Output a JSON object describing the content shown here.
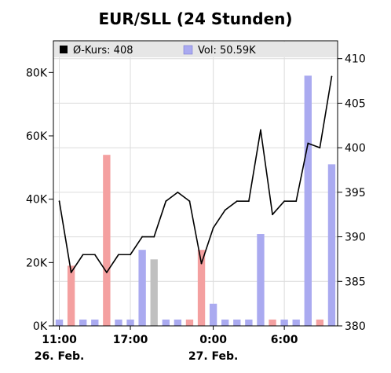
{
  "chart_data": {
    "type": "line",
    "title": "EUR/SLL (24 Stunden)",
    "legend": {
      "placement": "top",
      "items": [
        {
          "label": "Ø-Kurs: 408",
          "color": "#000000"
        },
        {
          "label": "Vol: 50.59K",
          "color": "#aaaaf0"
        }
      ]
    },
    "x_axis": {
      "ticks": [
        {
          "label": "11:00",
          "date": "26. Feb.",
          "at": 0
        },
        {
          "label": "17:00",
          "date": "",
          "at": 6
        },
        {
          "label": "0:00",
          "date": "27. Feb.",
          "at": 13
        },
        {
          "label": "6:00",
          "date": "",
          "at": 19
        }
      ]
    },
    "price_axis": {
      "position": "right",
      "range": [
        380,
        412
      ],
      "ticks": [
        "380",
        "385",
        "390",
        "395",
        "400",
        "405",
        "410"
      ]
    },
    "volume_axis": {
      "position": "left",
      "range": [
        0,
        90
      ],
      "ticks": [
        "0K",
        "20K",
        "40K",
        "60K",
        "80K"
      ]
    },
    "grid": true,
    "price_series": {
      "name": "Ø-Kurs",
      "color": "#000000",
      "values": [
        394,
        386,
        388,
        388,
        386,
        388,
        388,
        390,
        390,
        394,
        395,
        394,
        387,
        391,
        393,
        394,
        394,
        402,
        392.5,
        394,
        394,
        400.5,
        400,
        408
      ]
    },
    "volume_series": {
      "name": "Vol",
      "values": [
        2,
        19,
        2,
        2,
        54,
        2,
        2,
        24,
        21,
        2,
        2,
        2,
        24,
        7,
        2,
        2,
        2,
        29,
        2,
        2,
        2,
        79,
        2,
        51
      ],
      "colors": [
        "#aaaaf0",
        "#f4a0a0",
        "#aaaaf0",
        "#aaaaf0",
        "#f4a0a0",
        "#aaaaf0",
        "#aaaaf0",
        "#aaaaf0",
        "#c0c0c0",
        "#aaaaf0",
        "#aaaaf0",
        "#f4a0a0",
        "#f4a0a0",
        "#aaaaf0",
        "#aaaaf0",
        "#aaaaf0",
        "#aaaaf0",
        "#aaaaf0",
        "#f4a0a0",
        "#aaaaf0",
        "#aaaaf0",
        "#aaaaf0",
        "#f4a0a0",
        "#aaaaf0"
      ]
    }
  }
}
